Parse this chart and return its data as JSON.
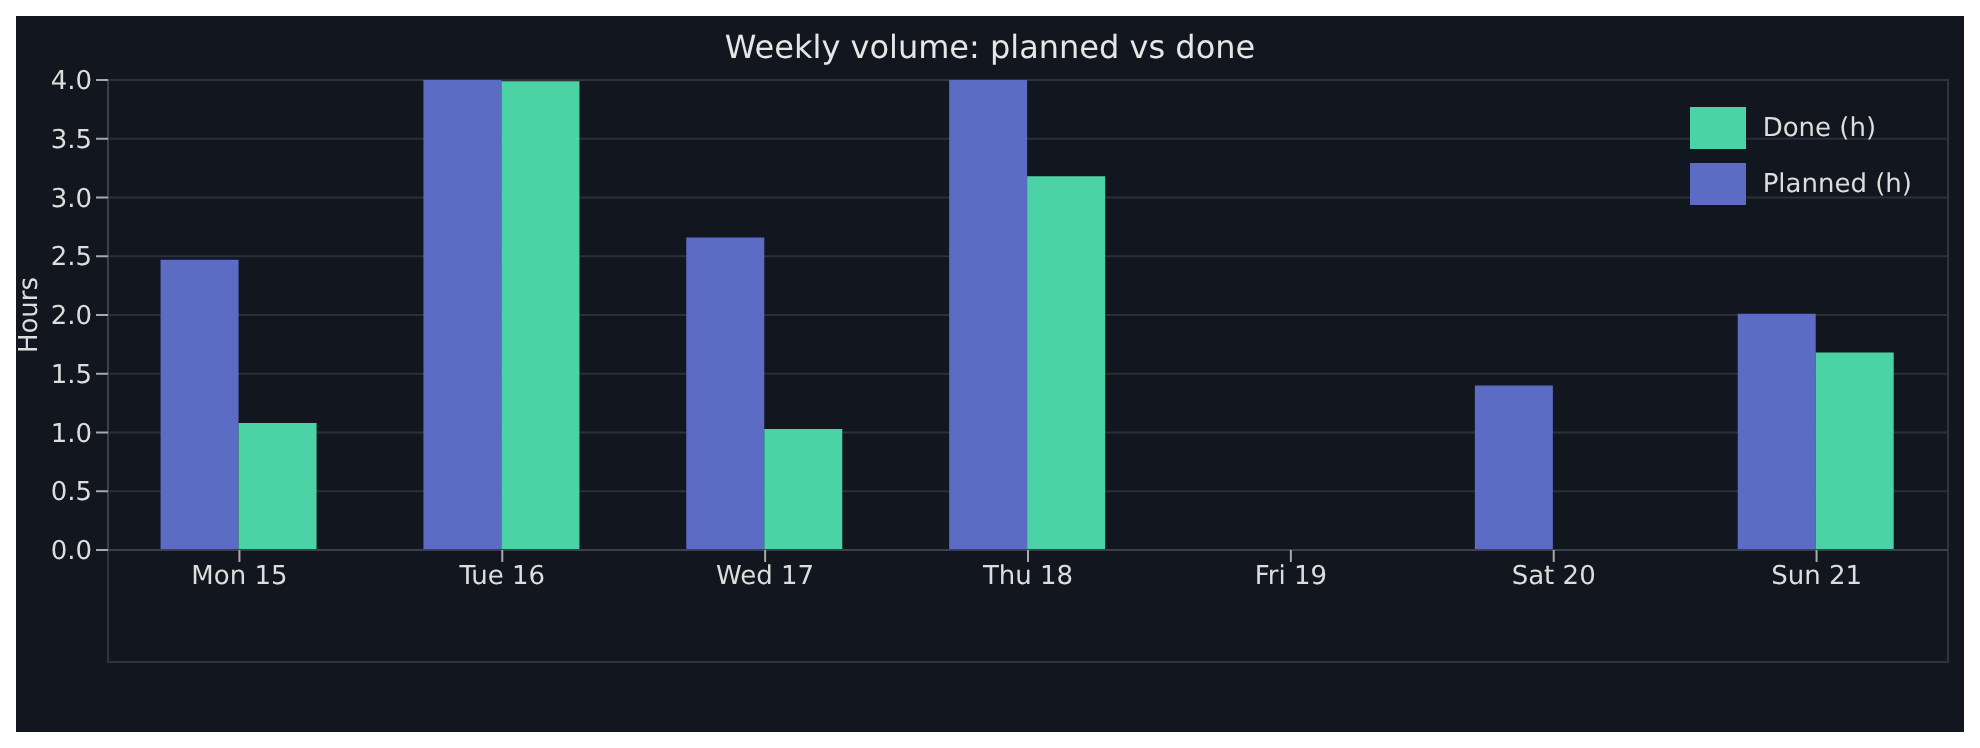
{
  "chart_data": {
    "type": "bar",
    "title": "Weekly volume: planned vs done",
    "ylabel": "Hours",
    "categories": [
      "Mon 15",
      "Tue 16",
      "Wed 17",
      "Thu 18",
      "Fri 19",
      "Sat 20",
      "Sun 21"
    ],
    "series": [
      {
        "name": "Planned (h)",
        "color": "#5c6bc4",
        "values": [
          2.47,
          4.0,
          2.66,
          4.0,
          0,
          1.4,
          2.01
        ]
      },
      {
        "name": "Done (h)",
        "color": "#4cd3a5",
        "values": [
          1.08,
          3.99,
          1.03,
          3.18,
          0,
          0,
          1.68
        ]
      }
    ],
    "ylim": [
      0,
      4
    ],
    "yticks": [
      {
        "value": 0,
        "label": "0.0"
      },
      {
        "value": 0.5,
        "label": "0.5"
      },
      {
        "value": 1,
        "label": "1.0"
      },
      {
        "value": 1.5,
        "label": "1.5"
      },
      {
        "value": 2,
        "label": "2.0"
      },
      {
        "value": 2.5,
        "label": "2.5"
      },
      {
        "value": 3,
        "label": "3.0"
      },
      {
        "value": 3.5,
        "label": "3.5"
      },
      {
        "value": 4,
        "label": "4.0"
      }
    ],
    "grid": "y",
    "legend": "top right"
  }
}
